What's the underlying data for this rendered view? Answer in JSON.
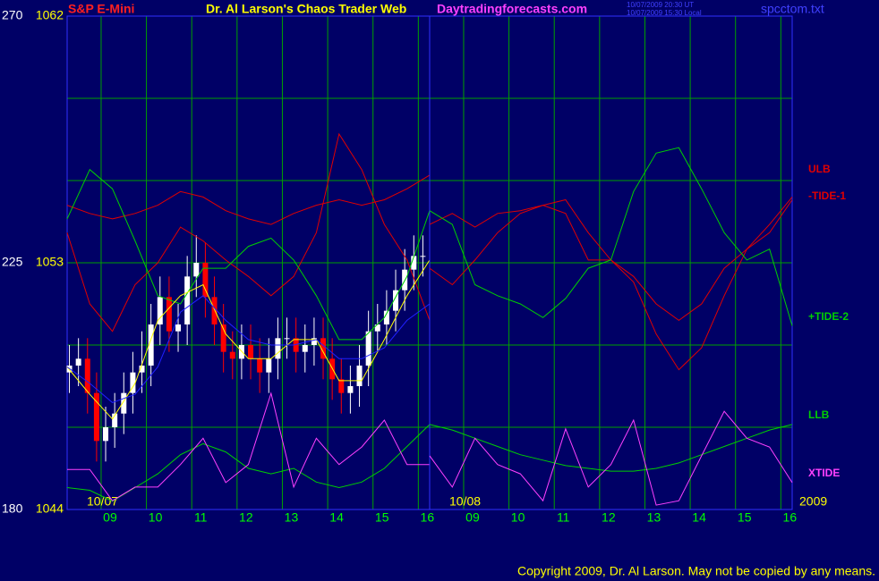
{
  "header": {
    "instrument": "S&P E-Mini",
    "title": "Dr. Al Larson's Chaos Trader Web",
    "site": "Daytradingforecasts.com",
    "timestamp_ut": "10/07/2009 20:30 UT",
    "timestamp_local": "10/07/2009 15:30 Local",
    "file": "spcctom.txt"
  },
  "footer": "Copyright 2009, Dr. Al Larson. May not be copied by any means.",
  "chart_data": [
    {
      "type": "candlestick",
      "date_label": "10/07",
      "xlim": [
        8.25,
        16.25
      ],
      "xticks": [
        {
          "value": 9,
          "label": "09"
        },
        10,
        11,
        12,
        13,
        14,
        15,
        16
      ],
      "ylim": [
        1044,
        1062
      ],
      "yticks": [
        1044,
        1053,
        1062
      ],
      "ygrid": [
        1044,
        1047,
        1050,
        1053,
        1056,
        1059,
        1062
      ],
      "y2lim": [
        180,
        270
      ],
      "y2ticks": [
        180,
        225,
        270
      ],
      "grid_color": "#00a000",
      "up_color": "#ffffff",
      "down_color": "#ff0000",
      "candles": {
        "x": [
          8.3,
          8.5,
          8.7,
          8.9,
          9.1,
          9.3,
          9.5,
          9.7,
          9.9,
          10.1,
          10.3,
          10.5,
          10.7,
          10.9,
          11.1,
          11.3,
          11.5,
          11.7,
          11.9,
          12.1,
          12.3,
          12.5,
          12.7,
          12.9,
          13.1,
          13.3,
          13.5,
          13.7,
          13.9,
          14.1,
          14.3,
          14.5,
          14.7,
          14.9,
          15.1,
          15.3,
          15.5,
          15.7,
          15.9,
          16.1
        ],
        "open": [
          1049,
          1049.25,
          1049.5,
          1048.25,
          1046.5,
          1047,
          1047.5,
          1048.25,
          1049,
          1049.25,
          1050.75,
          1051.75,
          1050.5,
          1050.75,
          1052.5,
          1053,
          1051.75,
          1050.75,
          1049.75,
          1049.5,
          1050,
          1049.5,
          1049,
          1049.5,
          1050.25,
          1050.25,
          1049.75,
          1050,
          1050.25,
          1049.5,
          1048.75,
          1048.25,
          1048.5,
          1049.25,
          1050.5,
          1050.75,
          1051.25,
          1052,
          1052.75,
          1053.25
        ],
        "high": [
          1050,
          1050.25,
          1050.25,
          1049,
          1047.75,
          1048.25,
          1049,
          1049.75,
          1050.5,
          1051.5,
          1052.5,
          1052.5,
          1051.5,
          1053.25,
          1054,
          1053.75,
          1052.5,
          1051.5,
          1050.5,
          1050.75,
          1050.75,
          1050.25,
          1050.25,
          1051,
          1051,
          1051,
          1050.75,
          1051,
          1051,
          1050.25,
          1049.5,
          1049.25,
          1050,
          1051.25,
          1051.5,
          1052,
          1052.75,
          1053.5,
          1054,
          1054
        ],
        "low": [
          1048.25,
          1048.5,
          1047.5,
          1045.75,
          1045.75,
          1046.25,
          1046.75,
          1047.5,
          1048.25,
          1048.5,
          1050,
          1049.75,
          1049.75,
          1050,
          1051.75,
          1051,
          1050,
          1049,
          1048.75,
          1048.75,
          1048.75,
          1048.25,
          1048.25,
          1048.75,
          1049.5,
          1049,
          1049,
          1049.25,
          1048.75,
          1048,
          1047.5,
          1047.5,
          1047.75,
          1048.5,
          1049.75,
          1050,
          1050.5,
          1051.25,
          1052,
          1052.5
        ],
        "close": [
          1049.25,
          1049.5,
          1048.25,
          1046.5,
          1047,
          1047.5,
          1048.25,
          1049,
          1049.25,
          1050.75,
          1051.75,
          1050.5,
          1050.75,
          1052.5,
          1053,
          1051.75,
          1050.75,
          1049.75,
          1049.5,
          1050,
          1049.5,
          1049,
          1049.5,
          1050.25,
          1050.25,
          1049.75,
          1050,
          1050.25,
          1049.5,
          1048.75,
          1048.25,
          1048.5,
          1049.25,
          1050.5,
          1050.75,
          1051.25,
          1052,
          1052.75,
          1053.25,
          1053.25
        ]
      },
      "x": [
        8.25,
        8.75,
        9.25,
        9.75,
        10.25,
        10.75,
        11.25,
        11.75,
        12.25,
        12.75,
        13.25,
        13.75,
        14.25,
        14.75,
        15.25,
        15.75,
        16.25
      ],
      "series": [
        {
          "color": "#e00000",
          "values": [
            1055.1,
            1054.8,
            1054.6,
            1054.8,
            1055.1,
            1055.6,
            1055.4,
            1054.9,
            1054.6,
            1054.4,
            1054.8,
            1055.1,
            1055.3,
            1055.1,
            1055.3,
            1055.7,
            1056.2
          ]
        },
        {
          "color": "#e00000",
          "values": [
            1054.1,
            1051.5,
            1050.5,
            1052.2,
            1053,
            1054.3,
            1053.8,
            1053.1,
            1052.5,
            1051.8,
            1052.5,
            1054.1,
            1057.7,
            1056.4,
            1054.4,
            1053.1,
            1050.9
          ]
        },
        {
          "color": "#00d000",
          "values": [
            1054.6,
            1056.4,
            1055.7,
            1053.8,
            1051.8,
            1051.5,
            1052.8,
            1052.8,
            1053.6,
            1053.9,
            1053.1,
            1051.8,
            1050.2,
            1050.2,
            1051,
            1052.5,
            1054.9
          ]
        },
        {
          "color": "#00d000",
          "values": [
            1044.8,
            1044.7,
            1044.3,
            1044.8,
            1045.3,
            1046,
            1046.4,
            1046.1,
            1045.5,
            1045.3,
            1045.5,
            1045,
            1044.8,
            1045,
            1045.5,
            1046.3,
            1047.1
          ]
        },
        {
          "color": "#ff40ff",
          "axis": "y2",
          "values": [
            187.3,
            187.3,
            181.6,
            184.1,
            184.1,
            188.2,
            193,
            184.9,
            188.2,
            201.2,
            184.1,
            193,
            188.2,
            191.4,
            196.3,
            188.2,
            188.2
          ]
        },
        {
          "color": "#ffff00",
          "values": [
            1049.2,
            1048.2,
            1047.3,
            1048.6,
            1050.9,
            1051.8,
            1052.2,
            1050.4,
            1049.5,
            1049.5,
            1050.2,
            1050.2,
            1048.7,
            1048.7,
            1050.2,
            1051.8,
            1053.1
          ]
        },
        {
          "color": "#2020ff",
          "values": [
            1049.2,
            1048.6,
            1047.9,
            1048.2,
            1049.2,
            1051.2,
            1051.8,
            1050.9,
            1050.2,
            1050,
            1050,
            1050.2,
            1049.5,
            1049.5,
            1049.9,
            1050.9,
            1051.5
          ]
        }
      ]
    },
    {
      "type": "line",
      "date_label": "10/08",
      "year_label": "2009",
      "xlim": [
        8.25,
        16.25
      ],
      "xticks": [
        {
          "value": 9,
          "label": "09"
        },
        10,
        11,
        12,
        13,
        14,
        15,
        16
      ],
      "ylim": [
        1044,
        1062
      ],
      "ygrid": [
        1044,
        1047,
        1050,
        1053,
        1056,
        1059,
        1062
      ],
      "y2lim": [
        180,
        270
      ],
      "grid_color": "#00a000",
      "x": [
        8.25,
        8.75,
        9.25,
        9.75,
        10.25,
        10.75,
        11.25,
        11.75,
        12.25,
        12.75,
        13.25,
        13.75,
        14.25,
        14.75,
        15.25,
        15.75,
        16.25
      ],
      "series": [
        {
          "name": "ULB",
          "color": "#e00000",
          "values": [
            1052.8,
            1052.2,
            1053.1,
            1054.1,
            1054.8,
            1055.1,
            1054.8,
            1053.1,
            1053.1,
            1052.3,
            1050.4,
            1049.1,
            1049.9,
            1051.8,
            1053.5,
            1054.1,
            1055.3
          ]
        },
        {
          "name": "-TIDE-1",
          "color": "#e00000",
          "values": [
            1054.4,
            1054.8,
            1054.3,
            1054.8,
            1054.9,
            1055.1,
            1055.3,
            1054.1,
            1053.1,
            1052.5,
            1051.5,
            1050.9,
            1051.5,
            1052.8,
            1053.5,
            1054.4,
            1055.4
          ]
        },
        {
          "name": "+TIDE-2",
          "color": "#00d000",
          "values": [
            1054.9,
            1054.4,
            1052.2,
            1051.8,
            1051.5,
            1051,
            1051.7,
            1052.8,
            1053.1,
            1055.6,
            1057,
            1057.2,
            1055.7,
            1054.1,
            1053.1,
            1053.5,
            1050.7
          ]
        },
        {
          "name": "LLB",
          "color": "#00d000",
          "values": [
            1047.1,
            1046.9,
            1046.6,
            1046.3,
            1046,
            1045.8,
            1045.6,
            1045.5,
            1045.4,
            1045.4,
            1045.5,
            1045.7,
            1046,
            1046.3,
            1046.6,
            1046.9,
            1047.1
          ]
        },
        {
          "name": "XTIDE",
          "color": "#ff40ff",
          "axis": "y2",
          "values": [
            189.8,
            184.1,
            193,
            188.2,
            186.5,
            181.6,
            194.7,
            184.1,
            188.2,
            196.3,
            180.8,
            181.6,
            189.8,
            197.9,
            193,
            191.4,
            184.9
          ]
        }
      ]
    }
  ]
}
